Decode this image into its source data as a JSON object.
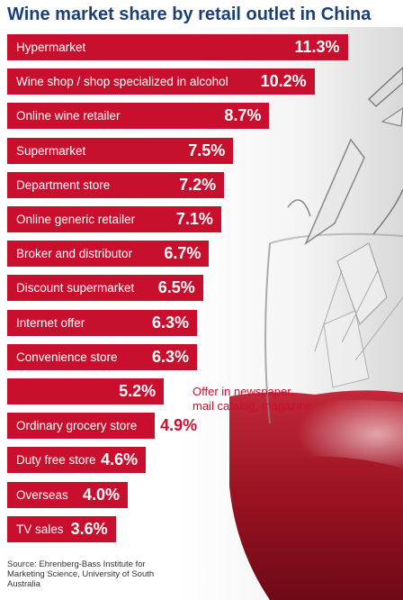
{
  "chart_data": {
    "type": "bar",
    "orientation": "horizontal",
    "title": "Wine market share by retail outlet in China",
    "categories": [
      "Hypermarket",
      "Wine shop / shop specialized in alcohol",
      "Online wine retailer",
      "Supermarket",
      "Department store",
      "Online generic retailer",
      "Broker and distributor",
      "Discount supermarket",
      "Internet offer",
      "Convenience store",
      "Offer in newspaper, mail catalog, magazine",
      "Ordinary grocery store",
      "Duty free store",
      "Overseas",
      "TV sales"
    ],
    "values": [
      11.3,
      10.2,
      8.7,
      7.5,
      7.2,
      7.1,
      6.7,
      6.5,
      6.3,
      6.3,
      5.2,
      4.9,
      4.6,
      4.0,
      3.6
    ],
    "value_labels": [
      "11.3%",
      "10.2%",
      "8.7%",
      "7.5%",
      "7.2%",
      "7.1%",
      "6.7%",
      "6.5%",
      "6.3%",
      "6.3%",
      "5.2%",
      "4.9%",
      "4.6%",
      "4.0%",
      "3.6%"
    ],
    "bar_color": "#c8102e",
    "unit": "%",
    "source": "Source: Ehrenberg-Bass Institute for Marketing Science, University of South Australia"
  }
}
